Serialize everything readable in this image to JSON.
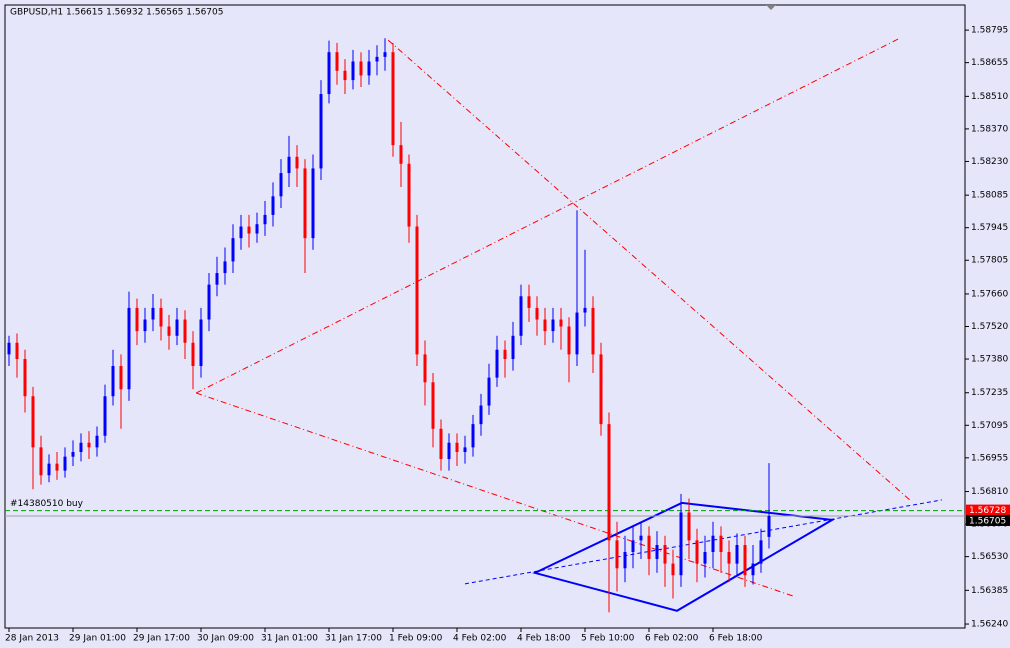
{
  "chart_data": {
    "type": "candlestick",
    "title": "GBPUSD,H1  1.56615 1.56932 1.56565 1.56705",
    "up_color": "#0000ff",
    "down_color": "#ff0000",
    "categories": [
      "28 Jan 2013",
      null,
      null,
      null,
      null,
      null,
      null,
      null,
      "29 Jan 01:00",
      null,
      null,
      null,
      null,
      null,
      null,
      null,
      "29 Jan 17:00",
      null,
      null,
      null,
      null,
      null,
      null,
      null,
      "30 Jan 09:00",
      null,
      null,
      null,
      null,
      null,
      null,
      null,
      "31 Jan 01:00",
      null,
      null,
      null,
      null,
      null,
      null,
      null,
      "31 Jan 17:00",
      null,
      null,
      null,
      null,
      null,
      null,
      null,
      "1 Feb 09:00",
      null,
      null,
      null,
      null,
      null,
      null,
      null,
      "4 Feb 02:00",
      null,
      null,
      null,
      null,
      null,
      null,
      null,
      "4 Feb 18:00",
      null,
      null,
      null,
      null,
      null,
      null,
      null,
      "5 Feb 10:00",
      null,
      null,
      null,
      null,
      null,
      null,
      null,
      "6 Feb 02:00",
      null,
      null,
      null,
      null,
      null,
      null,
      null,
      "6 Feb 18:00",
      null,
      null,
      null,
      null,
      null,
      null,
      null
    ],
    "open": [
      1.574,
      1.5745,
      1.5738,
      1.5722,
      1.57,
      1.5688,
      1.5693,
      1.569,
      1.5696,
      1.5698,
      1.5702,
      1.57,
      1.5705,
      1.5722,
      1.5735,
      1.5725,
      1.576,
      1.575,
      1.5755,
      1.576,
      1.5752,
      1.5748,
      1.5755,
      1.5745,
      1.5735,
      1.5755,
      1.577,
      1.5775,
      1.578,
      1.579,
      1.5795,
      1.5792,
      1.5796,
      1.58,
      1.5808,
      1.5818,
      1.5825,
      1.582,
      1.579,
      1.582,
      1.5852,
      1.587,
      1.5862,
      1.5858,
      1.5866,
      1.586,
      1.5866,
      1.5868,
      1.587,
      1.583,
      1.5822,
      1.5795,
      1.574,
      1.5728,
      1.5708,
      1.5695,
      1.5702,
      1.5698,
      1.57,
      1.571,
      1.5718,
      1.573,
      1.5742,
      1.5738,
      1.5748,
      1.5765,
      1.576,
      1.5755,
      1.575,
      1.5755,
      1.5752,
      1.574,
      1.5758,
      1.576,
      1.574,
      1.571,
      1.566,
      1.5648,
      1.5655,
      1.566,
      1.5662,
      1.5652,
      1.5658,
      1.565,
      1.5645,
      1.5672,
      1.566,
      1.565,
      1.5655,
      1.5662,
      1.5655,
      1.565,
      1.5658,
      1.5645,
      1.565,
      1.56615
    ],
    "high": [
      1.5748,
      1.5749,
      1.5742,
      1.5726,
      1.5705,
      1.5697,
      1.5698,
      1.57,
      1.5703,
      1.5706,
      1.5707,
      1.5709,
      1.5727,
      1.5742,
      1.574,
      1.5767,
      1.5764,
      1.576,
      1.5766,
      1.5764,
      1.5757,
      1.576,
      1.5759,
      1.575,
      1.576,
      1.5775,
      1.5782,
      1.5786,
      1.5796,
      1.58,
      1.58,
      1.5801,
      1.5806,
      1.5814,
      1.5824,
      1.5834,
      1.583,
      1.5824,
      1.5826,
      1.5858,
      1.5875,
      1.5874,
      1.5867,
      1.5871,
      1.587,
      1.5871,
      1.5873,
      1.5876,
      1.5874,
      1.584,
      1.5826,
      1.58,
      1.5746,
      1.5732,
      1.5712,
      1.5706,
      1.5706,
      1.5705,
      1.5714,
      1.5723,
      1.5736,
      1.5748,
      1.5746,
      1.5754,
      1.577,
      1.577,
      1.5765,
      1.576,
      1.576,
      1.576,
      1.5756,
      1.5802,
      1.5785,
      1.5765,
      1.5745,
      1.5715,
      1.5668,
      1.5662,
      1.5666,
      1.5668,
      1.5666,
      1.5664,
      1.5662,
      1.5656,
      1.568,
      1.5678,
      1.5665,
      1.5662,
      1.5668,
      1.5666,
      1.566,
      1.5663,
      1.5662,
      1.5658,
      1.5665,
      1.56932
    ],
    "low": [
      1.5735,
      1.573,
      1.5715,
      1.5682,
      1.5684,
      1.5685,
      1.5686,
      1.5687,
      1.5692,
      1.5694,
      1.5695,
      1.5696,
      1.5702,
      1.5718,
      1.5708,
      1.572,
      1.5744,
      1.5745,
      1.575,
      1.5746,
      1.5742,
      1.5744,
      1.5738,
      1.5725,
      1.573,
      1.575,
      1.5765,
      1.577,
      1.5775,
      1.5785,
      1.5786,
      1.5788,
      1.5791,
      1.5795,
      1.5803,
      1.5812,
      1.5812,
      1.5775,
      1.5785,
      1.5815,
      1.5848,
      1.5856,
      1.5852,
      1.5854,
      1.5855,
      1.5856,
      1.586,
      1.5862,
      1.5825,
      1.5812,
      1.5788,
      1.5735,
      1.5718,
      1.57,
      1.569,
      1.569,
      1.5692,
      1.5693,
      1.5696,
      1.5705,
      1.5714,
      1.5726,
      1.573,
      1.5733,
      1.5744,
      1.5754,
      1.5748,
      1.5744,
      1.5745,
      1.5742,
      1.5728,
      1.5735,
      1.5752,
      1.5732,
      1.5705,
      1.5629,
      1.5638,
      1.5642,
      1.5648,
      1.5652,
      1.5645,
      1.5646,
      1.564,
      1.5635,
      1.564,
      1.5652,
      1.5642,
      1.5644,
      1.5648,
      1.5646,
      1.5642,
      1.5645,
      1.564,
      1.5641,
      1.5646,
      1.56565
    ],
    "close": [
      1.5745,
      1.5738,
      1.5722,
      1.57,
      1.5688,
      1.5693,
      1.569,
      1.5696,
      1.5698,
      1.5702,
      1.57,
      1.5705,
      1.5722,
      1.5735,
      1.5725,
      1.576,
      1.575,
      1.5755,
      1.576,
      1.5752,
      1.5748,
      1.5755,
      1.5745,
      1.5735,
      1.5755,
      1.577,
      1.5775,
      1.578,
      1.579,
      1.5795,
      1.5792,
      1.5796,
      1.58,
      1.5808,
      1.5818,
      1.5825,
      1.582,
      1.579,
      1.582,
      1.5852,
      1.587,
      1.5862,
      1.5858,
      1.5866,
      1.586,
      1.5866,
      1.5868,
      1.587,
      1.583,
      1.5822,
      1.5795,
      1.574,
      1.5728,
      1.5708,
      1.5695,
      1.5702,
      1.5698,
      1.57,
      1.571,
      1.5718,
      1.573,
      1.5742,
      1.5738,
      1.5748,
      1.5765,
      1.576,
      1.5755,
      1.575,
      1.5755,
      1.5752,
      1.574,
      1.5758,
      1.576,
      1.574,
      1.571,
      1.566,
      1.5648,
      1.5655,
      1.566,
      1.5662,
      1.5652,
      1.5658,
      1.565,
      1.5645,
      1.5672,
      1.566,
      1.565,
      1.5655,
      1.5662,
      1.5655,
      1.565,
      1.5658,
      1.5645,
      1.565,
      1.566,
      1.56705
    ],
    "xlim": [
      -0.5,
      119.5
    ],
    "ylim": [
      1.56223,
      1.58903
    ],
    "yticks": [
      1.58795,
      1.58655,
      {
        "value": 1.5851,
        "label": "1.58510"
      },
      {
        "value": 1.5837,
        "label": "1.58370"
      },
      {
        "value": 1.5823,
        "label": "1.58230"
      },
      1.58085,
      1.57945,
      1.57805,
      {
        "value": 1.5766,
        "label": "1.57660"
      },
      {
        "value": 1.5752,
        "label": "1.57520"
      },
      {
        "value": 1.5738,
        "label": "1.57380"
      },
      1.57235,
      1.57095,
      1.56955,
      {
        "value": 1.5681,
        "label": "1.56810"
      },
      {
        "value": 1.5667,
        "label": "1.56670"
      },
      {
        "value": 1.5653,
        "label": "1.56530"
      },
      1.56385,
      {
        "value": 1.5624,
        "label": "1.56240"
      }
    ],
    "bid": 1.56705,
    "order": {
      "label": "#14380510 buy",
      "price": 1.56728
    },
    "drawings": [
      {
        "color": "#ff0000",
        "dash": "6 3 1 3",
        "points": [
          [
            23.4,
            1.57234
          ],
          [
            111.4,
            1.58761
          ]
        ]
      },
      {
        "color": "#ff0000",
        "dash": "6 3 1 3",
        "points": [
          [
            47.4,
            1.58752
          ],
          [
            112.6,
            1.56774
          ]
        ]
      },
      {
        "color": "#ff0000",
        "dash": "6 3 1 3",
        "points": [
          [
            23.4,
            1.57234
          ],
          [
            98.3,
            1.56357
          ]
        ]
      },
      {
        "color": "#0000ff",
        "dash": "4 3",
        "points": [
          [
            57,
            1.56413
          ],
          [
            116.6,
            1.56774
          ]
        ]
      },
      {
        "color": "#0000ff",
        "dash": "none",
        "closed": true,
        "points": [
          [
            65.75,
            1.5646
          ],
          [
            84.1,
            1.56761
          ],
          [
            102.9,
            1.56688
          ],
          [
            83.5,
            1.56297
          ]
        ]
      }
    ]
  }
}
